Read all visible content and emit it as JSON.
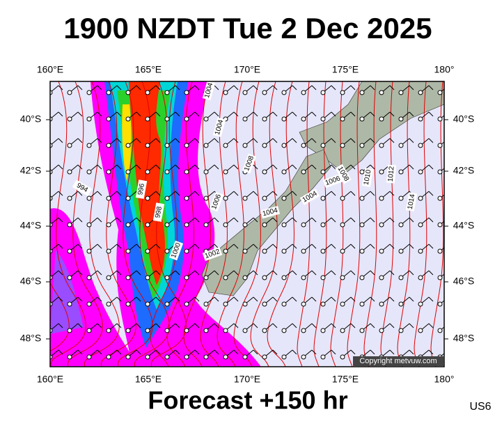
{
  "header": {
    "title": "1900 NZDT Tue 2 Dec 2025"
  },
  "footer": {
    "subtitle": "Forecast +150 hr",
    "code": "US6"
  },
  "map": {
    "lon_labels": [
      "160°E",
      "165°E",
      "170°E",
      "175°E",
      "180°"
    ],
    "lat_labels": [
      "40°S",
      "42°S",
      "44°S",
      "46°S",
      "48°S"
    ],
    "isobar_labels": [
      "1004",
      "1004",
      "994",
      "996",
      "998",
      "1000",
      "1002",
      "1006",
      "1008",
      "1004",
      "1004",
      "1006",
      "1008",
      "1010",
      "1012",
      "1014"
    ],
    "copyright": "Copyright metvuw.com"
  }
}
